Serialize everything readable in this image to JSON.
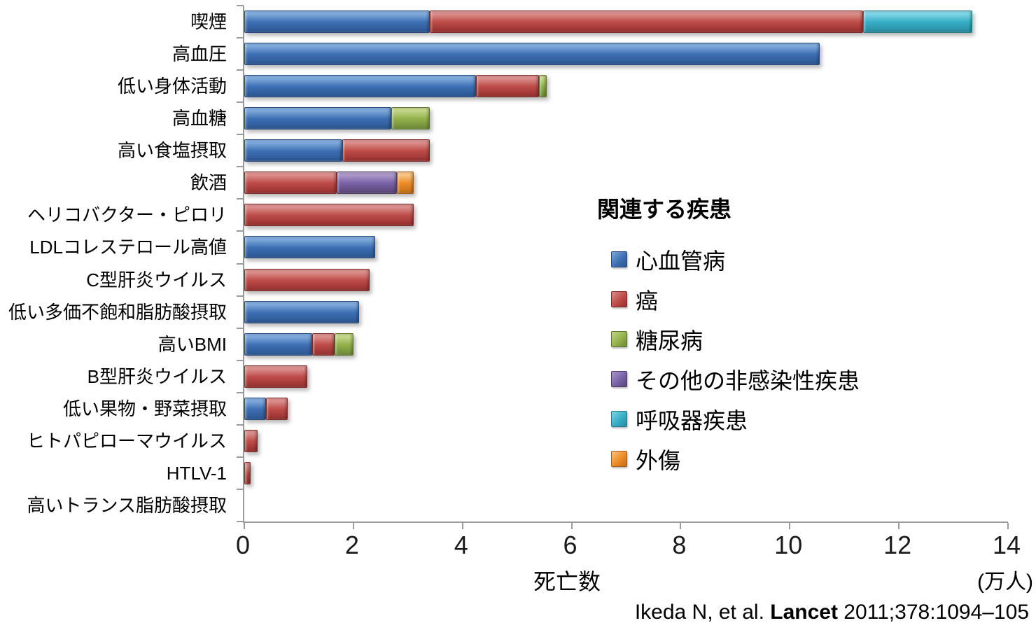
{
  "chart_data": {
    "type": "bar",
    "orientation": "horizontal",
    "stacked": true,
    "title": "",
    "xlabel": "死亡数",
    "x_unit": "(万人)",
    "xlim": [
      0,
      14
    ],
    "xticks": [
      0,
      2,
      4,
      6,
      8,
      10,
      12,
      14
    ],
    "grid": false,
    "legend_position": "right-middle",
    "categories": [
      "喫煙",
      "高血圧",
      "低い身体活動",
      "高血糖",
      "高い食塩摂取",
      "飲酒",
      "ヘリコバクター・ピロリ",
      "LDLコレステロール高値",
      "C型肝炎ウイルス",
      "低い多価不飽和脂肪酸摂取",
      "高いBMI",
      "B型肝炎ウイルス",
      "低い果物・野菜摂取",
      "ヒトパピローマウイルス",
      "HTLV-1",
      "高いトランス脂肪酸摂取"
    ],
    "series": [
      {
        "name": "心血管病",
        "key": "cvd",
        "values": [
          3.4,
          10.55,
          4.25,
          2.7,
          1.8,
          0,
          0,
          2.4,
          0,
          2.1,
          1.25,
          0,
          0.4,
          0,
          0,
          0
        ]
      },
      {
        "name": "癌",
        "key": "cancer",
        "values": [
          7.95,
          0,
          1.15,
          0,
          1.6,
          1.7,
          3.1,
          0,
          2.3,
          0,
          0.4,
          1.15,
          0.4,
          0.25,
          0.12,
          0
        ]
      },
      {
        "name": "糖尿病",
        "key": "diabetes",
        "values": [
          0,
          0,
          0.15,
          0.7,
          0,
          0,
          0,
          0,
          0,
          0,
          0.35,
          0,
          0,
          0,
          0,
          0
        ]
      },
      {
        "name": "その他の非感染性疾患",
        "key": "other_ncd",
        "values": [
          0,
          0,
          0,
          0,
          0,
          1.1,
          0,
          0,
          0,
          0,
          0,
          0,
          0,
          0,
          0,
          0
        ]
      },
      {
        "name": "呼吸器疾患",
        "key": "resp",
        "values": [
          2.0,
          0,
          0,
          0,
          0,
          0,
          0,
          0,
          0,
          0,
          0,
          0,
          0,
          0,
          0,
          0
        ]
      },
      {
        "name": "外傷",
        "key": "injury",
        "values": [
          0,
          0,
          0,
          0,
          0,
          0.3,
          0,
          0,
          0,
          0,
          0,
          0,
          0,
          0,
          0,
          0
        ]
      }
    ],
    "palette": {
      "cvd": {
        "light": "#7FA9DB",
        "base": "#3E6FB4",
        "dark": "#2A5590",
        "border": "#24497E"
      },
      "cancer": {
        "light": "#DA8E8C",
        "base": "#BE4B48",
        "dark": "#93302E",
        "border": "#802A28"
      },
      "diabetes": {
        "light": "#C2D689",
        "base": "#94B14C",
        "dark": "#6B8836",
        "border": "#5C762E"
      },
      "other_ncd": {
        "light": "#AB97C8",
        "base": "#7A62A8",
        "dark": "#594573",
        "border": "#4D3C64"
      },
      "resp": {
        "light": "#7FD4E4",
        "base": "#35AEC6",
        "dark": "#2A8BA0",
        "border": "#25798B"
      },
      "injury": {
        "light": "#F9C483",
        "base": "#EE8B25",
        "dark": "#C06C1A",
        "border": "#A65D16"
      }
    },
    "axis_color": "#9b9b9b"
  },
  "legend": {
    "title": "関連する疾患"
  },
  "citation": {
    "pre": "Ikeda N, et al. ",
    "journal": "Lancet",
    "post": " 2011;378:1094–105"
  }
}
